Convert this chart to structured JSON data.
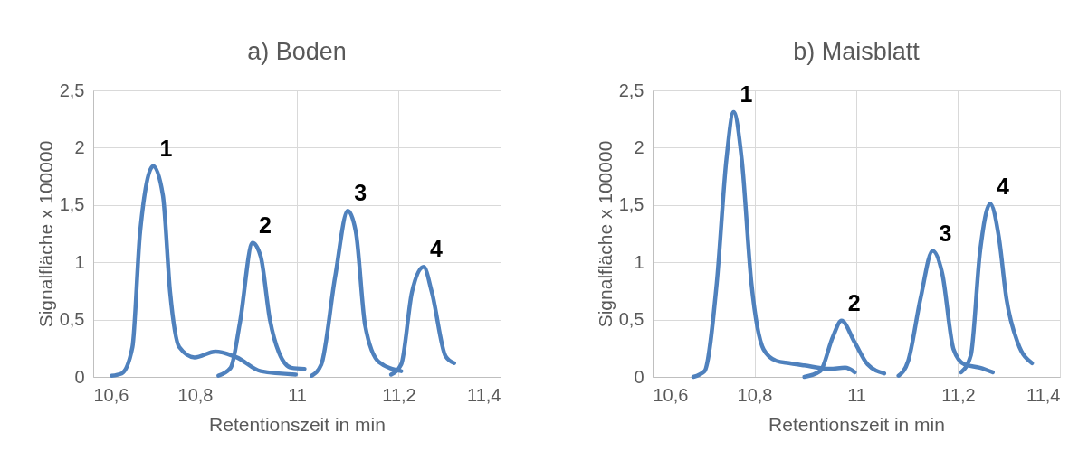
{
  "chart_data": [
    {
      "type": "line",
      "title": "a) Boden",
      "xlabel": "Retentionszeit in min",
      "ylabel": "Signalfläche x 100000",
      "xlim": [
        10.6,
        11.4
      ],
      "xticks": [
        {
          "value": 10.6,
          "label": "10,6"
        },
        {
          "value": 10.8,
          "label": "10,8"
        },
        11,
        {
          "value": 11.2,
          "label": "11,2"
        },
        {
          "value": 11.4,
          "label": "11,4"
        }
      ],
      "ylim": [
        0,
        2.5
      ],
      "yticks": [
        0,
        {
          "value": 0.5,
          "label": "0,5"
        },
        1,
        {
          "value": 1.5,
          "label": "1,5"
        },
        2,
        {
          "value": 2.5,
          "label": "2,5"
        }
      ],
      "grid": true,
      "marker": "none",
      "line_style": "solid",
      "series": [
        {
          "name": "1",
          "color": "#4f81bd",
          "x": [
            10.636,
            10.656,
            10.677,
            10.692,
            10.718,
            10.737,
            10.751,
            10.769,
            10.799,
            10.84,
            10.882,
            10.929,
            10.998
          ],
          "values": [
            0.01,
            0.03,
            0.26,
            1.26,
            1.84,
            1.58,
            0.74,
            0.26,
            0.17,
            0.22,
            0.17,
            0.05,
            0.02
          ]
        },
        {
          "name": "2",
          "color": "#4f81bd",
          "x": [
            10.846,
            10.87,
            10.888,
            10.913,
            10.929,
            10.947,
            10.965,
            10.989,
            11.015
          ],
          "values": [
            0.01,
            0.08,
            0.47,
            1.17,
            1.05,
            0.5,
            0.21,
            0.08,
            0.07
          ]
        },
        {
          "name": "3",
          "color": "#4f81bd",
          "x": [
            11.029,
            11.048,
            11.075,
            11.1,
            11.116,
            11.134,
            11.161,
            11.205
          ],
          "values": [
            0.01,
            0.11,
            0.87,
            1.45,
            1.26,
            0.45,
            0.13,
            0.05
          ]
        },
        {
          "name": "4",
          "color": "#4f81bd",
          "x": [
            11.185,
            11.205,
            11.226,
            11.249,
            11.265,
            11.292,
            11.309
          ],
          "values": [
            0.02,
            0.11,
            0.74,
            0.96,
            0.74,
            0.18,
            0.12
          ]
        }
      ]
    },
    {
      "type": "line",
      "title": "b) Maisblatt",
      "xlabel": "Retentionszeit in min",
      "ylabel": "Signalfläche x 100000",
      "xlim": [
        10.6,
        11.4
      ],
      "xticks": [
        {
          "value": 10.6,
          "label": "10,6"
        },
        {
          "value": 10.8,
          "label": "10,8"
        },
        11,
        {
          "value": 11.2,
          "label": "11,2"
        },
        {
          "value": 11.4,
          "label": "11,4"
        }
      ],
      "ylim": [
        0,
        2.5
      ],
      "yticks": [
        0,
        {
          "value": 0.5,
          "label": "0,5"
        },
        1,
        {
          "value": 1.5,
          "label": "1,5"
        },
        2,
        {
          "value": 2.5,
          "label": "2,5"
        }
      ],
      "grid": true,
      "marker": "none",
      "line_style": "solid",
      "series": [
        {
          "name": "1",
          "color": "#4f81bd",
          "x": [
            10.68,
            10.702,
            10.726,
            10.745,
            10.759,
            10.775,
            10.794,
            10.818,
            10.843,
            10.868,
            10.898,
            10.948,
            10.978,
            10.997
          ],
          "values": [
            0,
            0.05,
            0.82,
            1.9,
            2.31,
            1.9,
            0.82,
            0.24,
            0.14,
            0.12,
            0.1,
            0.07,
            0.08,
            0.04
          ]
        },
        {
          "name": "2",
          "color": "#4f81bd",
          "x": [
            10.898,
            10.929,
            10.954,
            10.971,
            10.997,
            11.022,
            11.055
          ],
          "values": [
            0,
            0.05,
            0.35,
            0.49,
            0.3,
            0.11,
            0.03
          ]
        },
        {
          "name": "3",
          "color": "#4f81bd",
          "x": [
            11.083,
            11.102,
            11.126,
            11.15,
            11.169,
            11.191,
            11.212,
            11.243,
            11.268
          ],
          "values": [
            0.01,
            0.14,
            0.68,
            1.1,
            0.9,
            0.24,
            0.11,
            0.08,
            0.04
          ]
        },
        {
          "name": "4",
          "color": "#4f81bd",
          "x": [
            11.206,
            11.225,
            11.243,
            11.263,
            11.28,
            11.295,
            11.317,
            11.345
          ],
          "values": [
            0.04,
            0.19,
            1.09,
            1.51,
            1.22,
            0.68,
            0.3,
            0.12
          ]
        }
      ]
    }
  ]
}
